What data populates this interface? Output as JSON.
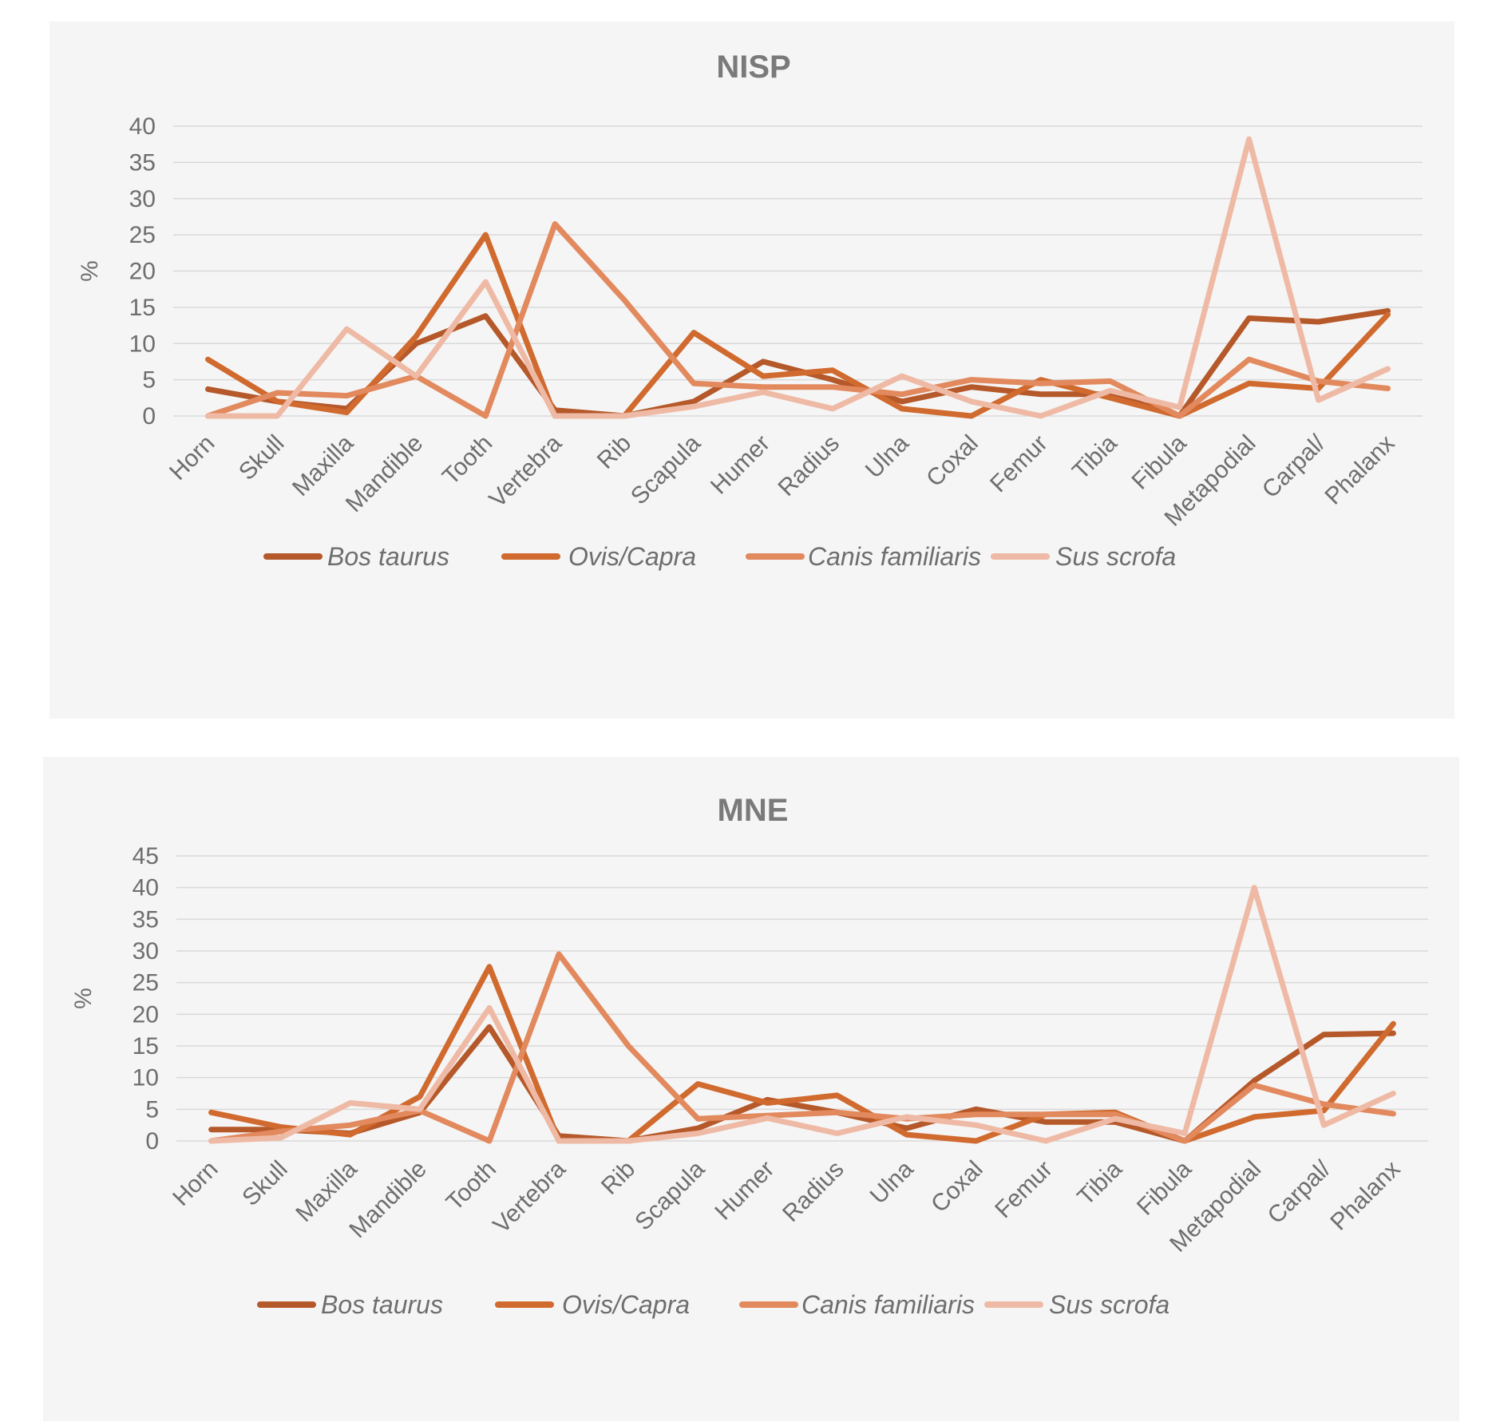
{
  "chart_data": [
    {
      "type": "line",
      "title": "NISP",
      "ylabel": "%",
      "xlabel": "",
      "ylim": [
        0,
        40
      ],
      "yticks": [
        0,
        5,
        10,
        15,
        20,
        25,
        30,
        35,
        40
      ],
      "grid": true,
      "legend_position": "bottom",
      "categories": [
        "Horn",
        "Skull",
        "Maxilla",
        "Mandible",
        "Tooth",
        "Vertebra",
        "Rib",
        "Scapula",
        "Humer",
        "Radius",
        "Ulna",
        "Coxal",
        "Femur",
        "Tibia",
        "Fibula",
        "Metapodial",
        "Carpal/",
        "Phalanx"
      ],
      "series": [
        {
          "name": "Bos taurus",
          "color": "#b5582a",
          "values": [
            3.7,
            2,
            1,
            10,
            13.8,
            0.8,
            0,
            2,
            7.5,
            5,
            2,
            4,
            3,
            3,
            0,
            13.5,
            13,
            14.5
          ]
        },
        {
          "name": "Ovis/Capra",
          "color": "#d06a2e",
          "values": [
            7.8,
            2,
            0.5,
            11,
            25,
            0,
            0,
            11.5,
            5.5,
            6.3,
            1,
            0,
            5,
            2.5,
            0,
            4.5,
            3.8,
            14
          ]
        },
        {
          "name": "Canis familiaris",
          "color": "#e2895e",
          "values": [
            0,
            3.2,
            2.8,
            5.5,
            0,
            26.5,
            16,
            4.5,
            4,
            4,
            3,
            5,
            4.5,
            4.8,
            0,
            7.8,
            4.8,
            3.8
          ]
        },
        {
          "name": "Sus scrofa",
          "color": "#efbaa5",
          "values": [
            0,
            0,
            12,
            5.5,
            18.5,
            0,
            0,
            1.3,
            3.3,
            1,
            5.5,
            2,
            0,
            3.5,
            1.2,
            38.2,
            2.2,
            6.5
          ]
        }
      ]
    },
    {
      "type": "line",
      "title": "MNE",
      "ylabel": "%",
      "xlabel": "",
      "ylim": [
        0,
        45
      ],
      "yticks": [
        0,
        5,
        10,
        15,
        20,
        25,
        30,
        35,
        40,
        45
      ],
      "grid": true,
      "legend_position": "bottom",
      "categories": [
        "Horn",
        "Skull",
        "Maxilla",
        "Mandible",
        "Tooth",
        "Vertebra",
        "Rib",
        "Scapula",
        "Humer",
        "Radius",
        "Ulna",
        "Coxal",
        "Femur",
        "Tibia",
        "Fibula",
        "Metapodial",
        "Carpal/",
        "Phalanx"
      ],
      "series": [
        {
          "name": "Bos taurus",
          "color": "#b5582a",
          "values": [
            1.8,
            1.8,
            1.2,
            4.5,
            18,
            0.8,
            0,
            2,
            6.5,
            4.5,
            2,
            5,
            3,
            3,
            0,
            9.5,
            16.8,
            17
          ]
        },
        {
          "name": "Ovis/Capra",
          "color": "#d06a2e",
          "values": [
            4.5,
            2.2,
            1,
            7,
            27.5,
            0,
            0,
            9,
            6,
            7.2,
            1,
            0,
            4.2,
            4.5,
            0,
            3.8,
            4.8,
            18.5
          ]
        },
        {
          "name": "Canis familiaris",
          "color": "#e2895e",
          "values": [
            0,
            1.5,
            2.5,
            4.8,
            0,
            29.5,
            15,
            3.5,
            4,
            4.5,
            3.5,
            4.2,
            4.2,
            4.2,
            0,
            8.8,
            5.8,
            4.3
          ]
        },
        {
          "name": "Sus scrofa",
          "color": "#efbaa5",
          "values": [
            0,
            0.5,
            6,
            5,
            21,
            0,
            0,
            1.2,
            3.6,
            1.2,
            3.8,
            2.5,
            0,
            3.5,
            1.2,
            40,
            2.5,
            7.5
          ]
        }
      ]
    }
  ]
}
